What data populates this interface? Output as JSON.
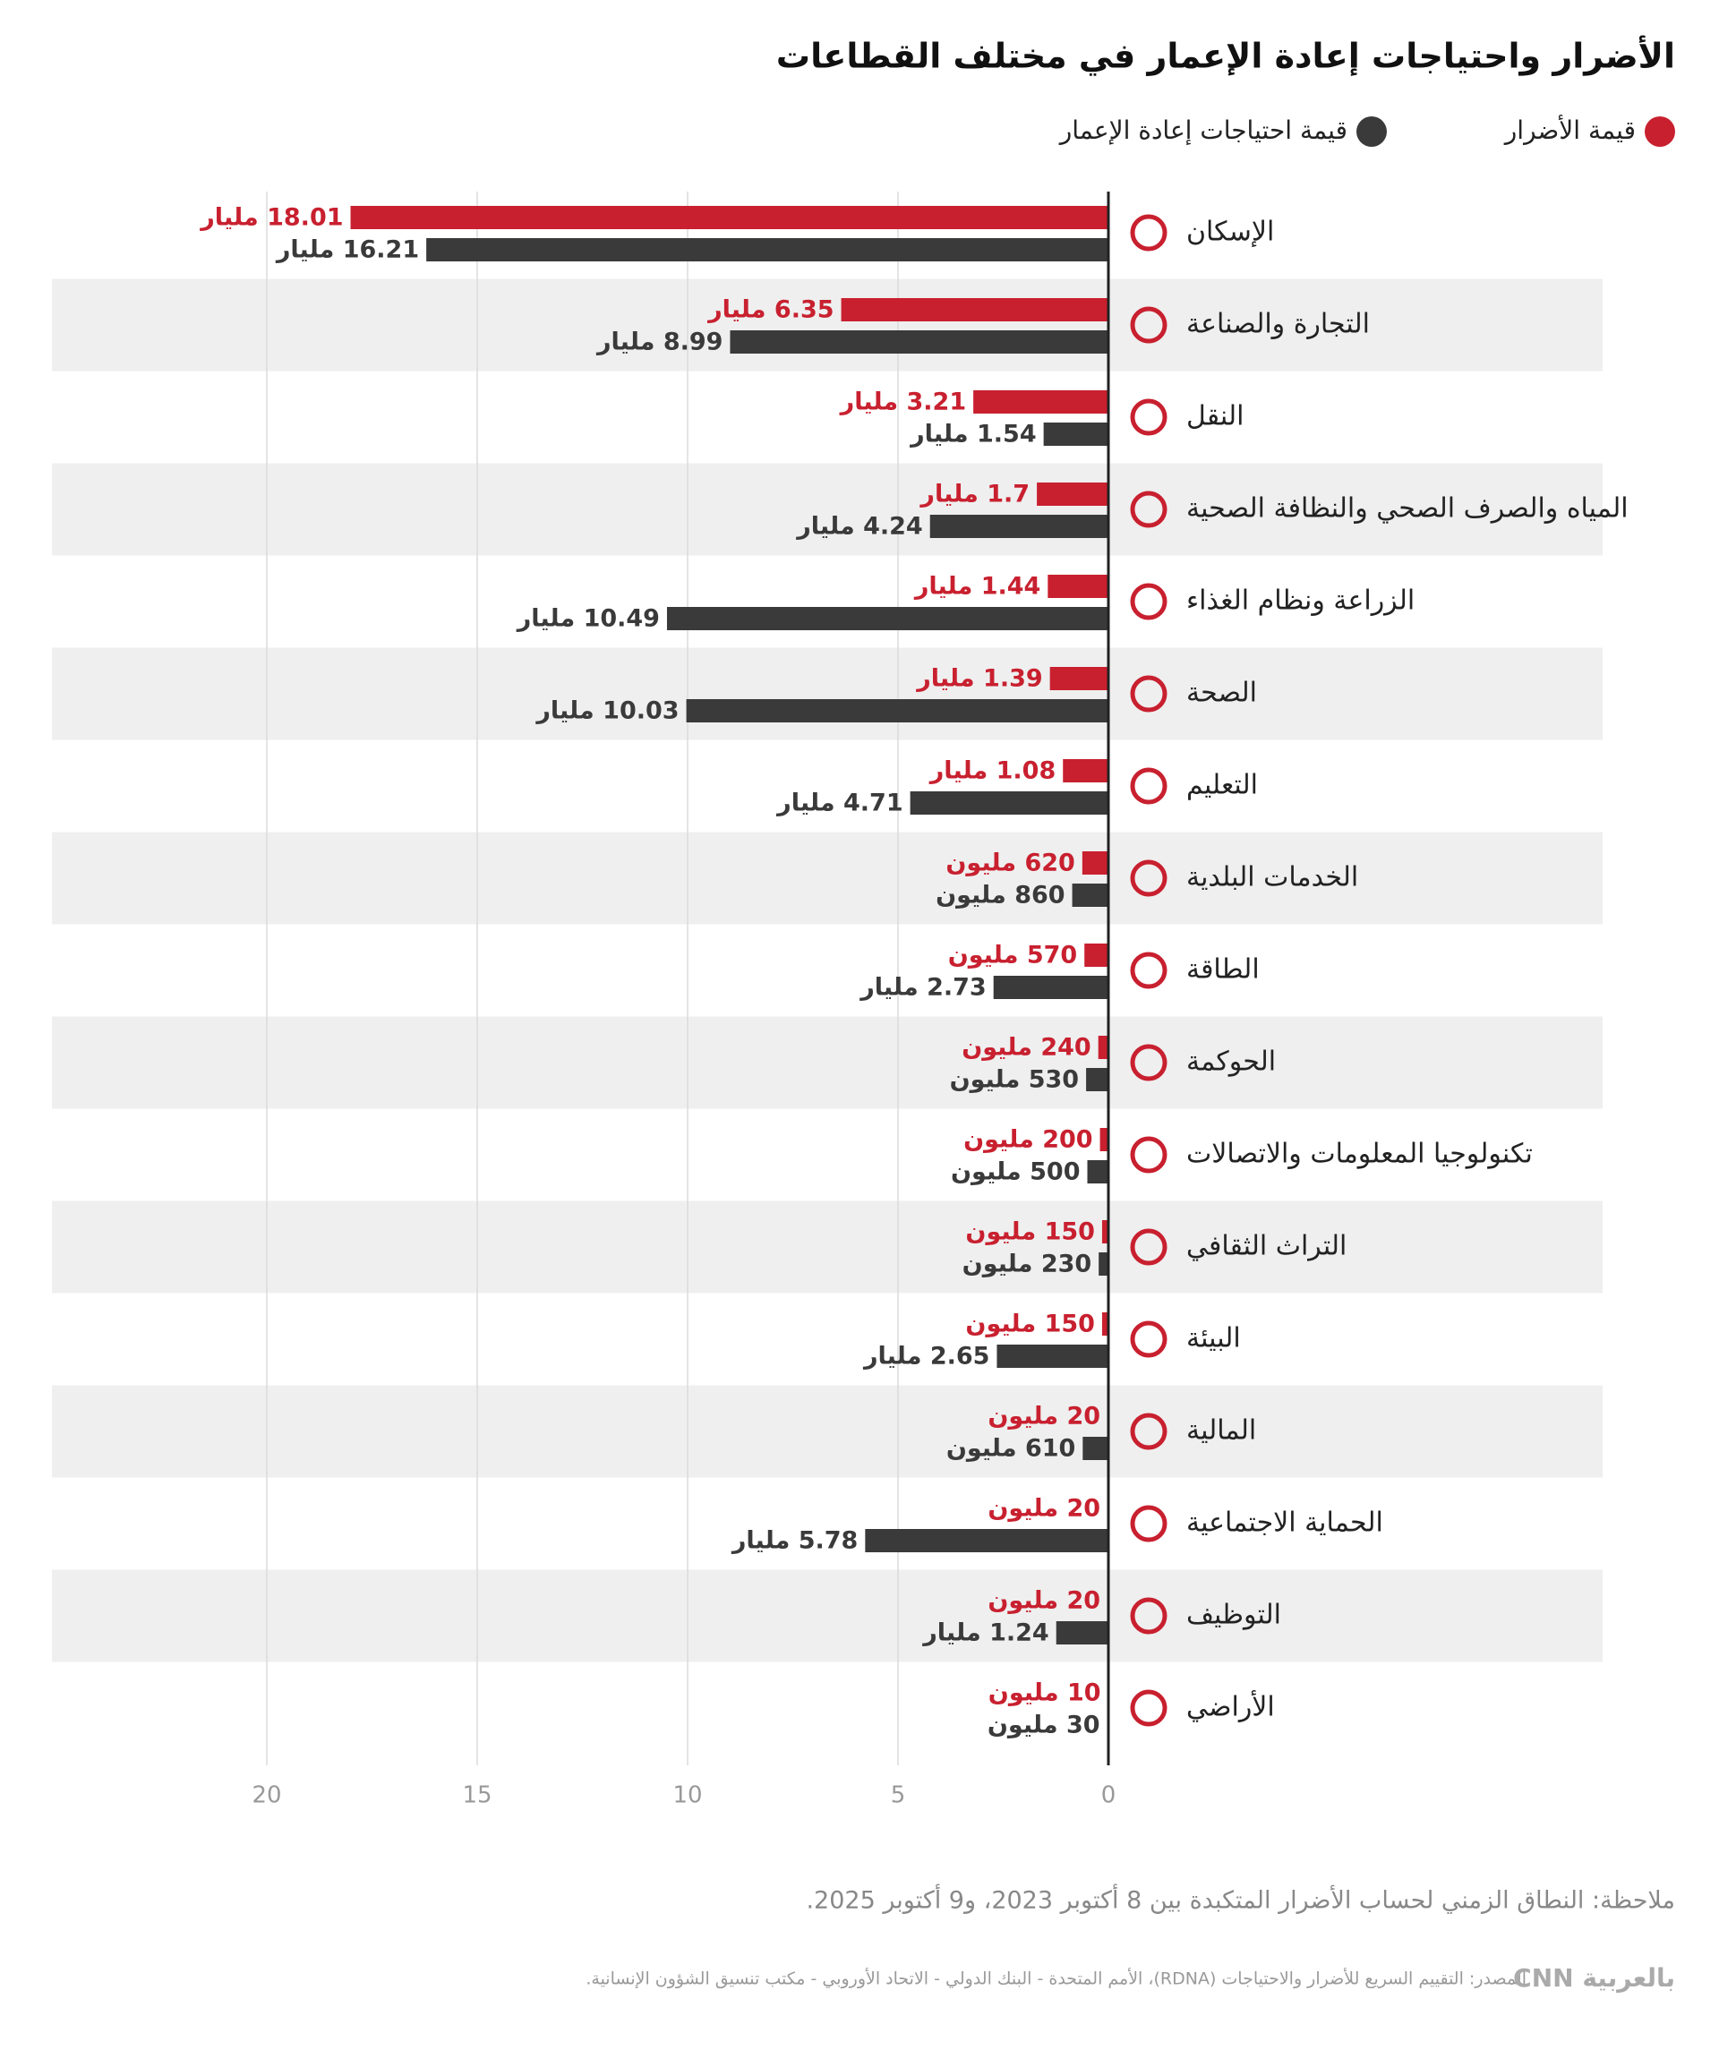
{
  "chart_data": {
    "type": "barh",
    "title": "الأضرار واحتياجات إعادة الإعمار في مختلف القطاعات",
    "categories": [
      "الإسكان",
      "التجارة والصناعة",
      "النقل",
      "المياه والصرف الصحي والنظافة الصحية",
      "الزراعة ونظام الغذاء",
      "الصحة",
      "التعليم",
      "الخدمات البلدية",
      "الطاقة",
      "الحوكمة",
      "تكنولوجيا المعلومات والاتصالات",
      "التراث الثقافي",
      "البيئة",
      "المالية",
      "الحماية الاجتماعية",
      "التوظيف",
      "الأراضي"
    ],
    "series": [
      {
        "name": "قيمة الأضرار",
        "color": "#c8202f",
        "values": [
          18.01,
          6.35,
          3.21,
          1.7,
          1.44,
          1.39,
          1.08,
          0.62,
          0.57,
          0.24,
          0.2,
          0.15,
          0.15,
          0.02,
          0.02,
          0.02,
          0.01
        ],
        "value_labels": [
          "18.01 مليار",
          "6.35 مليار",
          "3.21 مليار",
          "1.7 مليار",
          "1.44 مليار",
          "1.39 مليار",
          "1.08 مليار",
          "620 مليون",
          "570 مليون",
          "240 مليون",
          "200 مليون",
          "150 مليون",
          "150 مليون",
          "20 مليون",
          "20 مليون",
          "20 مليون",
          "10 مليون"
        ]
      },
      {
        "name": "قيمة احتياجات إعادة الإعمار",
        "color": "#3a3a3a",
        "values": [
          16.21,
          8.99,
          1.54,
          4.24,
          10.49,
          10.03,
          4.71,
          0.86,
          2.73,
          0.53,
          0.5,
          0.23,
          2.65,
          0.61,
          5.78,
          1.24,
          0.03
        ],
        "value_labels": [
          "16.21 مليار",
          "8.99 مليار",
          "1.54 مليار",
          "4.24 مليار",
          "10.49 مليار",
          "10.03 مليار",
          "4.71 مليار",
          "860 مليون",
          "2.73 مليار",
          "530 مليون",
          "500 مليون",
          "230 مليون",
          "2.65 مليار",
          "610 مليون",
          "5.78 مليار",
          "1.24 مليار",
          "30 مليون"
        ]
      }
    ],
    "xlim": [
      0,
      20
    ],
    "xticks": [
      0,
      5,
      10,
      15,
      20
    ],
    "grid": true,
    "note": "ملاحظة: النطاق الزمني لحساب الأضرار المتكبدة بين 8 أكتوبر 2023، و9 أكتوبر 2025.",
    "source": "المصدر: التقييم السريع للأضرار والاحتياجات (RDNA)، الأمم المتحدة - البنك الدولي - الاتحاد الأوروبي - مكتب تنسيق الشؤون الإنسانية.",
    "logo": "CNN بالعربية"
  }
}
